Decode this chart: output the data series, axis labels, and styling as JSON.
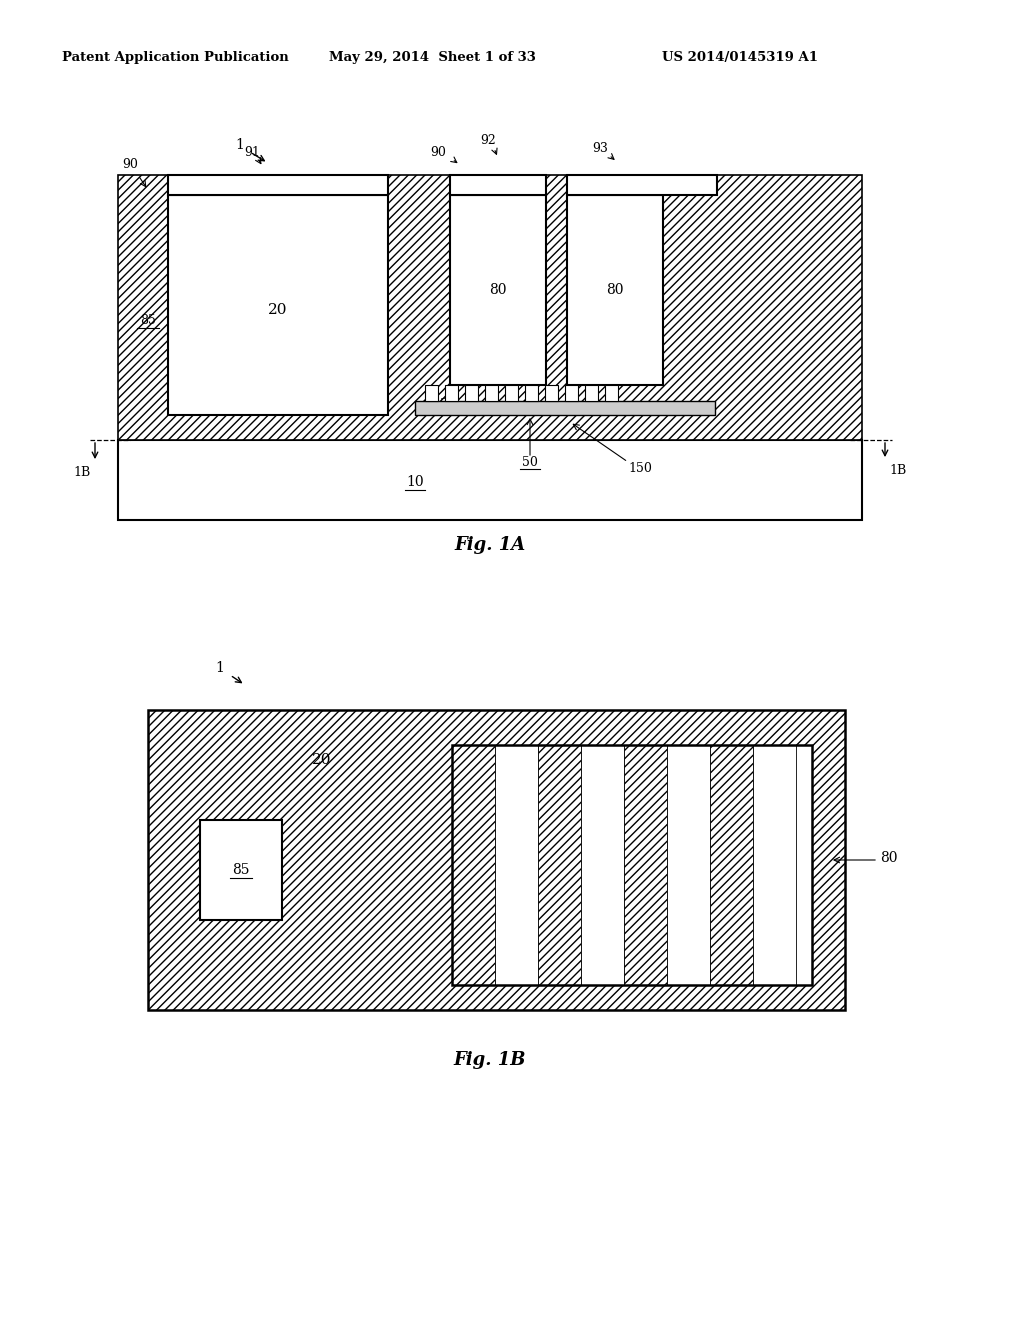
{
  "header_left": "Patent Application Publication",
  "header_mid": "May 29, 2014  Sheet 1 of 33",
  "header_right": "US 2014/0145319 A1",
  "fig1a_caption": "Fig. 1A",
  "fig1b_caption": "Fig. 1B"
}
